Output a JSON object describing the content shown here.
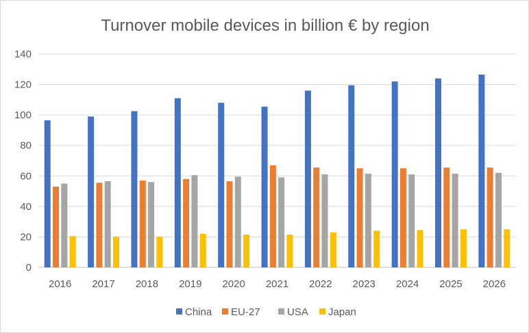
{
  "chart_data": {
    "type": "bar",
    "title": "Turnover mobile devices in billion € by region",
    "categories": [
      "2016",
      "2017",
      "2018",
      "2019",
      "2020",
      "2021",
      "2022",
      "2023",
      "2024",
      "2025",
      "2026"
    ],
    "series": [
      {
        "name": "China",
        "color": "#4472c4",
        "values": [
          96.5,
          99.0,
          102.5,
          111.0,
          108.0,
          105.5,
          116.0,
          119.5,
          122.0,
          124.0,
          126.5
        ]
      },
      {
        "name": "EU-27",
        "color": "#ed7d31",
        "values": [
          53.0,
          55.5,
          57.0,
          58.0,
          56.5,
          67.0,
          65.5,
          65.0,
          65.0,
          65.5,
          65.5
        ]
      },
      {
        "name": "USA",
        "color": "#a5a5a5",
        "values": [
          55.0,
          56.5,
          56.0,
          60.5,
          59.5,
          59.0,
          61.0,
          61.5,
          61.0,
          61.5,
          62.0
        ]
      },
      {
        "name": "Japan",
        "color": "#ffc000",
        "values": [
          20.5,
          20.0,
          20.0,
          22.0,
          21.5,
          21.5,
          23.0,
          24.0,
          24.5,
          25.0,
          25.0
        ]
      }
    ],
    "yticks": [
      "0",
      "20",
      "40",
      "60",
      "80",
      "100",
      "120",
      "140"
    ],
    "ylim": [
      0,
      140
    ],
    "grid": true,
    "legend": "bottom"
  }
}
